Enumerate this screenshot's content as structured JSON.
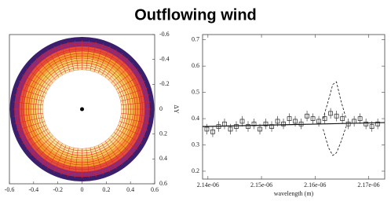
{
  "title": "Outflowing wind",
  "chart_data": [
    {
      "type": "image",
      "xlim": [
        -0.6,
        0.6
      ],
      "xticks": [
        -0.6,
        -0.4,
        -0.2,
        0,
        0.2,
        0.4,
        0.6
      ],
      "ylim": [
        -0.6,
        0.6
      ],
      "yticks": [
        -0.6,
        -0.4,
        -0.2,
        0,
        0.2,
        0.4,
        0.6
      ],
      "y_inverted": true,
      "y_label": "ΔY",
      "ring_colors": [
        "#3a1f6e",
        "#8a2a7a",
        "#e0503a",
        "#f29a2e",
        "#f7c95a",
        "#fbe7a0"
      ],
      "grid_color": "#e02020"
    },
    {
      "type": "scatter",
      "x_label": "wavelength (m)",
      "xlim": [
        2.139e-06,
        2.173e-06
      ],
      "xticks": [
        {
          "value": 2.14e-06,
          "label": "2.14e-06"
        },
        {
          "value": 2.15e-06,
          "label": "2.15e-06"
        },
        {
          "value": 2.16e-06,
          "label": "2.16e-06"
        },
        {
          "value": 2.17e-06,
          "label": "2.17e-06"
        }
      ],
      "ylim": [
        0.17,
        0.72
      ],
      "yticks": [
        0.2,
        0.3,
        0.4,
        0.5,
        0.6,
        0.7
      ],
      "points": {
        "x": [
          2.1398e-06,
          2.1409e-06,
          2.142e-06,
          2.1431e-06,
          2.1442e-06,
          2.1453e-06,
          2.1464e-06,
          2.1475e-06,
          2.1486e-06,
          2.1497e-06,
          2.1508e-06,
          2.1519e-06,
          2.153e-06,
          2.1541e-06,
          2.1552e-06,
          2.1563e-06,
          2.1574e-06,
          2.1585e-06,
          2.1596e-06,
          2.1607e-06,
          2.1618e-06,
          2.1629e-06,
          2.164e-06,
          2.1651e-06,
          2.1662e-06,
          2.1673e-06,
          2.1684e-06,
          2.1695e-06,
          2.1706e-06,
          2.1717e-06
        ],
        "values": [
          0.36,
          0.35,
          0.37,
          0.38,
          0.36,
          0.37,
          0.39,
          0.37,
          0.38,
          0.36,
          0.38,
          0.37,
          0.39,
          0.38,
          0.4,
          0.39,
          0.38,
          0.41,
          0.4,
          0.39,
          0.4,
          0.42,
          0.41,
          0.4,
          0.38,
          0.39,
          0.4,
          0.38,
          0.37,
          0.38
        ],
        "errors": [
          0.02,
          0.02,
          0.02,
          0.02,
          0.02,
          0.02,
          0.02,
          0.02,
          0.02,
          0.02,
          0.02,
          0.02,
          0.02,
          0.02,
          0.02,
          0.02,
          0.02,
          0.02,
          0.02,
          0.02,
          0.02,
          0.02,
          0.02,
          0.02,
          0.02,
          0.02,
          0.02,
          0.02,
          0.02,
          0.02
        ]
      },
      "lines": [
        {
          "x": [
            2.139e-06,
            2.173e-06
          ],
          "values": [
            0.37,
            0.385
          ],
          "dash": false
        },
        {
          "x": [
            2.1615e-06,
            2.1625e-06,
            2.1633e-06,
            2.164e-06,
            2.1648e-06,
            2.1658e-06
          ],
          "values": [
            0.4,
            0.47,
            0.53,
            0.54,
            0.47,
            0.4
          ],
          "dash": true
        },
        {
          "x": [
            2.1615e-06,
            2.1625e-06,
            2.1633e-06,
            2.164e-06,
            2.1648e-06,
            2.1658e-06
          ],
          "values": [
            0.36,
            0.29,
            0.26,
            0.27,
            0.31,
            0.37
          ],
          "dash": true
        }
      ]
    }
  ]
}
